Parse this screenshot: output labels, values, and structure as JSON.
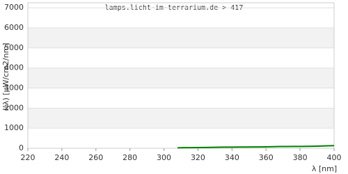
{
  "chart_data": {
    "type": "line",
    "title": "lamps.licht-im-terrarium.de > 417",
    "x_label": "λ [nm]",
    "y_label": "I(λ)  [µW/cm2/nm]",
    "x": [
      308,
      312,
      316,
      320,
      324,
      328,
      332,
      336,
      340,
      344,
      348,
      352,
      356,
      360,
      364,
      368,
      372,
      376,
      380,
      384,
      388,
      392,
      396,
      400
    ],
    "series": [
      {
        "name": "417",
        "color": "#008000",
        "values": [
          20,
          30,
          30,
          35,
          40,
          45,
          50,
          55,
          55,
          60,
          60,
          65,
          65,
          70,
          80,
          85,
          85,
          90,
          90,
          95,
          100,
          110,
          120,
          130
        ]
      }
    ],
    "xlim": [
      220,
      400
    ],
    "xticks": [
      220,
      240,
      260,
      280,
      300,
      320,
      340,
      360,
      380,
      400
    ],
    "ylim": [
      0,
      7250
    ],
    "yticks": [
      0,
      1000,
      2000,
      3000,
      4000,
      5000,
      6000,
      7000
    ],
    "grid": true
  }
}
